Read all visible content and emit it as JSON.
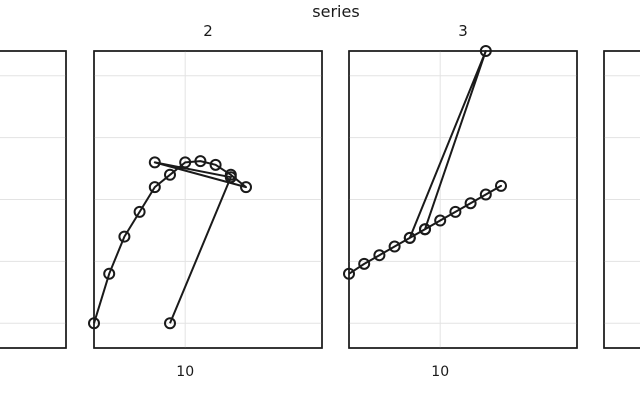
{
  "chart_data": {
    "type": "line",
    "title": "series",
    "grid": true,
    "marker": "open-circle",
    "x_ticks": [
      10
    ],
    "y_gridlines": [
      -1,
      -0.5,
      0,
      0.5,
      1
    ],
    "ylim": [
      -1.2,
      1.2
    ],
    "panels": [
      {
        "facet": "1",
        "show_title": false,
        "xlim": [
          4,
          19
        ],
        "x": [],
        "y": []
      },
      {
        "facet": "2",
        "show_title": true,
        "xlim": [
          4,
          19
        ],
        "x": [
          4,
          5,
          6,
          7,
          8,
          9,
          10,
          11,
          12,
          13,
          14,
          8,
          13,
          9
        ],
        "y": [
          -1,
          -0.6,
          -0.3,
          -0.1,
          0.1,
          0.2,
          0.3,
          0.31,
          0.28,
          0.2,
          0.1,
          0.3,
          0.18,
          -1
        ],
        "x_tick_labels": [
          "10"
        ]
      },
      {
        "facet": "3",
        "show_title": true,
        "xlim": [
          4,
          19
        ],
        "x": [
          4,
          5,
          6,
          7,
          8,
          9,
          10,
          11,
          12,
          13,
          14,
          8,
          13,
          9
        ],
        "y": [
          -0.6,
          -0.52,
          -0.45,
          -0.38,
          -0.31,
          -0.24,
          -0.17,
          -0.1,
          -0.03,
          0.04,
          0.11,
          -0.31,
          1.2,
          -0.24
        ],
        "x_tick_labels": [
          "10"
        ]
      },
      {
        "facet": "4",
        "show_title": false,
        "xlim": [
          4,
          19
        ],
        "x": [],
        "y": []
      }
    ]
  }
}
